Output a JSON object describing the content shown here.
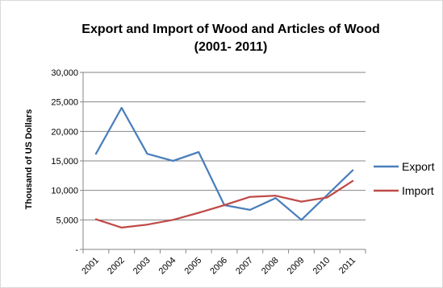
{
  "chart_data": {
    "type": "line",
    "title_line1": "Export and Import of Wood and Articles of Wood",
    "title_line2": "(2001- 2011)",
    "ylabel": "Thousand of US Dollars",
    "xlabel": "",
    "x": [
      "2001",
      "2002",
      "2003",
      "2004",
      "2005",
      "2006",
      "2007",
      "2008",
      "2009",
      "2010",
      "2011"
    ],
    "ylim": [
      0,
      30000
    ],
    "yticks": [
      0,
      5000,
      10000,
      15000,
      20000,
      25000,
      30000
    ],
    "ytick_labels": [
      "-",
      "5,000",
      "10,000",
      "15,000",
      "20,000",
      "25,000",
      "30,000"
    ],
    "grid": true,
    "legend_position": "right",
    "series": [
      {
        "name": "Export",
        "color": "#4a7ebb",
        "values": [
          16200,
          24000,
          16200,
          15000,
          16500,
          7500,
          6700,
          8700,
          5000,
          9200,
          13400
        ]
      },
      {
        "name": "Import",
        "color": "#be4b48",
        "values": [
          5100,
          3700,
          4200,
          5000,
          6200,
          7500,
          8900,
          9100,
          8100,
          8800,
          11600
        ]
      }
    ]
  }
}
